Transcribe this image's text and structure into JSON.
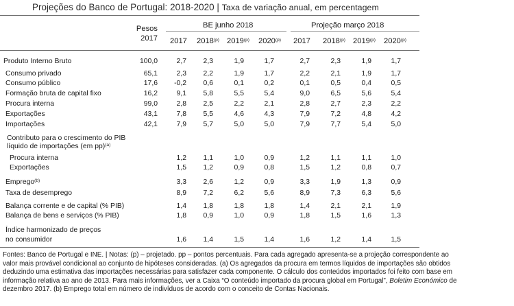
{
  "title": "Projeções do Banco de Portugal: 2018-2020",
  "subtitle": "Taxa de variação anual, em percentagem",
  "header": {
    "weights_line1": "Pesos",
    "weights_line2": "2017",
    "group1": "BE junho 2018",
    "group2": "Projeção março 2018",
    "years": [
      "2017",
      "2018",
      "2019",
      "2020",
      "2017",
      "2018",
      "2019",
      "2020"
    ],
    "year_sups": [
      "",
      "(p)",
      "(p)",
      "(p)",
      "",
      "(p)",
      "(p)",
      "(p)"
    ]
  },
  "rows": [
    {
      "label": "Produto Interno Bruto",
      "sup": "",
      "weight": "100,0",
      "values": [
        "2,7",
        "2,3",
        "1,9",
        "1,7",
        "2,7",
        "2,3",
        "1,9",
        "1,7"
      ]
    },
    {
      "label": "Consumo privado",
      "sup": "",
      "weight": "65,1",
      "values": [
        "2,3",
        "2,2",
        "1,9",
        "1,7",
        "2,2",
        "2,1",
        "1,9",
        "1,7"
      ]
    },
    {
      "label": "Consumo público",
      "sup": "",
      "weight": "17,6",
      "values": [
        "-0,2",
        "0,6",
        "0,1",
        "0,2",
        "0,1",
        "0,5",
        "0,4",
        "0,5"
      ]
    },
    {
      "label": "Formação bruta de capital fixo",
      "sup": "",
      "weight": "16,2",
      "values": [
        "9,1",
        "5,8",
        "5,5",
        "5,4",
        "9,0",
        "6,5",
        "5,6",
        "5,4"
      ]
    },
    {
      "label": "Procura interna",
      "sup": "",
      "weight": "99,0",
      "values": [
        "2,8",
        "2,5",
        "2,2",
        "2,1",
        "2,8",
        "2,7",
        "2,3",
        "2,2"
      ]
    },
    {
      "label": "Exportações",
      "sup": "",
      "weight": "43,1",
      "values": [
        "7,8",
        "5,5",
        "4,6",
        "4,3",
        "7,9",
        "7,2",
        "4,8",
        "4,2"
      ]
    },
    {
      "label": "Importações",
      "sup": "",
      "weight": "42,1",
      "values": [
        "7,9",
        "5,7",
        "5,0",
        "5,0",
        "7,9",
        "7,7",
        "5,4",
        "5,0"
      ]
    },
    {
      "label": "Procura interna",
      "sup": "",
      "weight": "",
      "values": [
        "1,2",
        "1,1",
        "1,0",
        "0,9",
        "1,2",
        "1,1",
        "1,1",
        "1,0"
      ]
    },
    {
      "label": "Exportações",
      "sup": "",
      "weight": "",
      "values": [
        "1,5",
        "1,2",
        "0,9",
        "0,8",
        "1,5",
        "1,2",
        "0,8",
        "0,7"
      ]
    },
    {
      "label": "Emprego",
      "sup": "(b)",
      "weight": "",
      "values": [
        "3,3",
        "2,6",
        "1,2",
        "0,9",
        "3,3",
        "1,9",
        "1,3",
        "0,9"
      ]
    },
    {
      "label": "Taxa de desemprego",
      "sup": "",
      "weight": "",
      "values": [
        "8,9",
        "7,2",
        "6,2",
        "5,6",
        "8,9",
        "7,3",
        "6,3",
        "5,6"
      ]
    },
    {
      "label": "Balança corrente e de capital (% PIB)",
      "sup": "",
      "weight": "",
      "values": [
        "1,4",
        "1,8",
        "1,8",
        "1,8",
        "1,4",
        "2,1",
        "2,1",
        "1,9"
      ]
    },
    {
      "label": "Balança de bens e serviços (% PIB)",
      "sup": "",
      "weight": "",
      "values": [
        "1,8",
        "0,9",
        "1,0",
        "0,9",
        "1,8",
        "1,5",
        "1,6",
        "1,3"
      ]
    },
    {
      "label": "no consumidor",
      "sup": "",
      "weight": "",
      "values": [
        "1,6",
        "1,4",
        "1,5",
        "1,4",
        "1,6",
        "1,2",
        "1,4",
        "1,5"
      ]
    }
  ],
  "section_labels": {
    "contrib_line1": "Contributo para o crescimento do PIB",
    "contrib_line2": "líquido de importações (em pp)",
    "contrib_sup": "(a)",
    "ihpc_line1": "Índice harmonizado de preços"
  },
  "footnote": [
    "Fontes: Banco de Portugal e INE.  |  Notas: (p) – projetado. pp – pontos percentuais. Para cada agregado apresenta-se a projeção correspondente ao",
    "valor mais provável condicional ao conjunto de hipóteses consideradas. (a) Os agregados da procura em termos líquidos de importações são obtidos",
    "deduzindo uma estimativa das importações necessárias para satisfazer cada componente. O cálculo dos conteúdos importados foi feito com base em",
    "informação relativa ao ano de 2013. Para mais informações, ver a Caixa “O conteúdo importado da procura global em Portugal”, ",
    "Boletim Económico",
    " de",
    "dezembro 2017. (b) Emprego total em número de indivíduos de acordo com o conceito de Contas Nacionais."
  ]
}
